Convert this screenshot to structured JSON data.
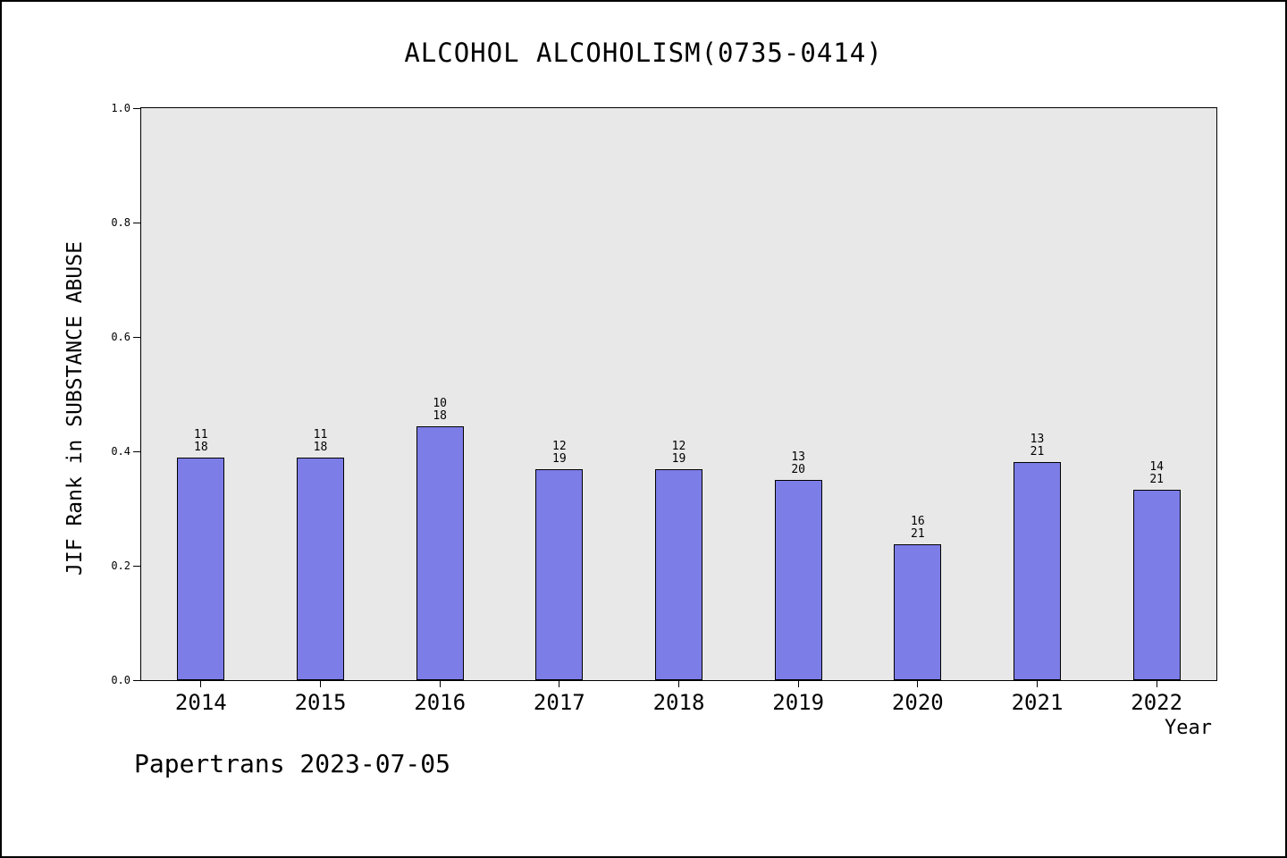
{
  "title": "ALCOHOL ALCOHOLISM(0735-0414)",
  "footer": "Papertrans 2023-07-05",
  "chart_data": {
    "type": "bar",
    "title": "ALCOHOL ALCOHOLISM(0735-0414)",
    "xlabel": "Year",
    "ylabel": "JIF Rank in SUBSTANCE ABUSE",
    "ylim": [
      0.0,
      1.0
    ],
    "yticks": [
      "0.0",
      "0.2",
      "0.4",
      "0.6",
      "0.8",
      "1.0"
    ],
    "grid": false,
    "legend": "none",
    "plot_bg": "#e8e8e8",
    "bar_color": "#7d7de8",
    "bar_edge_color": "#000000",
    "categories": [
      "2014",
      "2015",
      "2016",
      "2017",
      "2018",
      "2019",
      "2020",
      "2021",
      "2022"
    ],
    "series": [
      {
        "name": "JIF Rank in SUBSTANCE ABUSE",
        "values": [
          0.3889,
          0.3889,
          0.4444,
          0.3684,
          0.3684,
          0.35,
          0.2381,
          0.381,
          0.3333
        ]
      }
    ],
    "bar_labels": [
      {
        "rank": "11",
        "total": "18"
      },
      {
        "rank": "11",
        "total": "18"
      },
      {
        "rank": "10",
        "total": "18"
      },
      {
        "rank": "12",
        "total": "19"
      },
      {
        "rank": "12",
        "total": "19"
      },
      {
        "rank": "13",
        "total": "20"
      },
      {
        "rank": "16",
        "total": "21"
      },
      {
        "rank": "13",
        "total": "21"
      },
      {
        "rank": "14",
        "total": "21"
      }
    ]
  }
}
